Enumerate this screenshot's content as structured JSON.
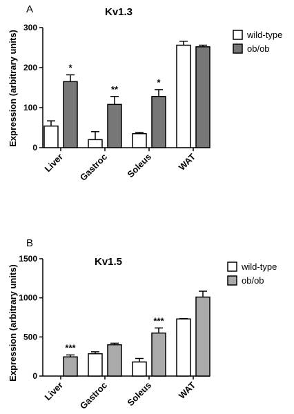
{
  "chart_data": [
    {
      "type": "bar",
      "panel": "A",
      "title": "Kv1.3",
      "ylabel": "Expression (arbitrary units)",
      "xlabel": "",
      "categories": [
        "Liver",
        "Gastroc",
        "Soleus",
        "WAT"
      ],
      "ylim": [
        0,
        300
      ],
      "yticks": [
        "0",
        "100",
        "200",
        "300"
      ],
      "legend_position": "top-right",
      "grid": false,
      "series": [
        {
          "name": "wild-type",
          "color": "#ffffff",
          "values": [
            54,
            20,
            35,
            256
          ],
          "errors": [
            13,
            20,
            3,
            10
          ]
        },
        {
          "name": "ob/ob",
          "color": "#777777",
          "values": [
            165,
            108,
            128,
            252
          ],
          "errors": [
            17,
            20,
            17,
            4
          ]
        }
      ],
      "annotations": [
        {
          "category": "Liver",
          "series": "ob/ob",
          "text": "*"
        },
        {
          "category": "Gastroc",
          "series": "ob/ob",
          "text": "**"
        },
        {
          "category": "Soleus",
          "series": "ob/ob",
          "text": "*"
        }
      ]
    },
    {
      "type": "bar",
      "panel": "B",
      "title": "Kv1.5",
      "ylabel": "Expression (arbitrary units)",
      "xlabel": "",
      "categories": [
        "Liver",
        "Gastroc",
        "Soleus",
        "WAT"
      ],
      "ylim": [
        0,
        1500
      ],
      "yticks": [
        "0",
        "500",
        "1000",
        "1500"
      ],
      "legend_position": "top-right",
      "grid": false,
      "series": [
        {
          "name": "wild-type",
          "color": "#ffffff",
          "values": [
            0,
            285,
            180,
            730
          ],
          "errors": [
            0,
            25,
            45,
            5
          ]
        },
        {
          "name": "ob/ob",
          "color": "#aaaaaa",
          "values": [
            245,
            400,
            550,
            1010
          ],
          "errors": [
            25,
            20,
            65,
            75
          ]
        }
      ],
      "annotations": [
        {
          "category": "Liver",
          "series": "ob/ob",
          "text": "***"
        },
        {
          "category": "Soleus",
          "series": "ob/ob",
          "text": "***"
        }
      ]
    }
  ]
}
